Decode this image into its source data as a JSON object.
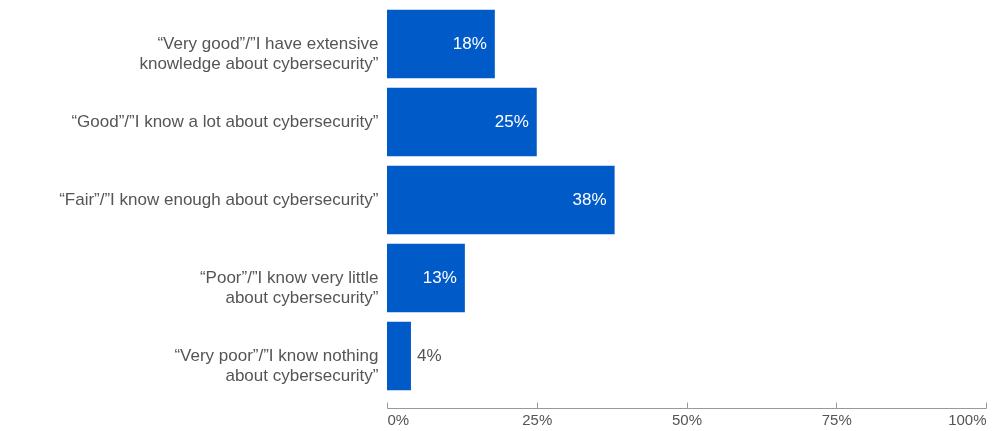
{
  "chart_data": {
    "type": "bar",
    "orientation": "horizontal",
    "categories": [
      "“Very good”/”I have extensive\nknowledge about cybersecurity”",
      "“Good”/”I know a lot about cybersecurity”",
      "“Fair”/”I know enough about cybersecurity”",
      "“Poor”/”I know very little\nabout cybersecurity”",
      "“Very poor”/”I know nothing\nabout cybersecurity”"
    ],
    "values": [
      18,
      25,
      38,
      13,
      4
    ],
    "value_labels": [
      "18%",
      "25%",
      "38%",
      "13%",
      "4%"
    ],
    "color": "#005ac8",
    "xlim": [
      0,
      100
    ],
    "xticks": [
      {
        "value": 0,
        "label": "0%"
      },
      {
        "value": 25,
        "label": "25%"
      },
      {
        "value": 50,
        "label": "50%"
      },
      {
        "value": 75,
        "label": "75%"
      },
      {
        "value": 100,
        "label": "100%"
      }
    ]
  }
}
